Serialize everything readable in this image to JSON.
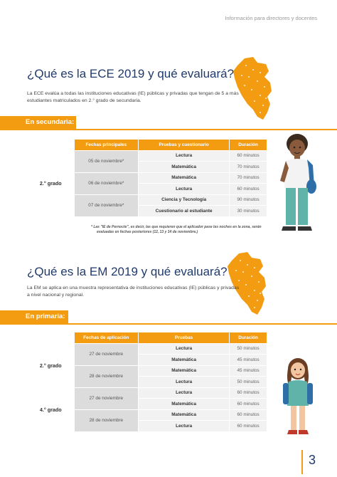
{
  "header": {
    "note": "Información para directores y docentes"
  },
  "ece": {
    "title": "¿Qué es la ECE 2019 y qué evaluará?",
    "intro": "La ECE evalúa a todas las instituciones educativas (IE) públicas y privadas que tengan de 5 a más estudiantes matriculados en 2.° grado de secundaria.",
    "tag": "En secundaria:",
    "headers": [
      "Fechas principales",
      "Pruebas y cuestionario",
      "Duración"
    ],
    "grade": "2.° grado",
    "dates": [
      "05 de noviembre*",
      "06 de noviembre*",
      "07 de noviembre*"
    ],
    "rows": [
      {
        "test": "Lectura",
        "duration": "60 minutos"
      },
      {
        "test": "Matemática",
        "duration": "70 minutos"
      },
      {
        "test": "Matemática",
        "duration": "70 minutos"
      },
      {
        "test": "Lectura",
        "duration": "60 minutos"
      },
      {
        "test": "Ciencia y Tecnología",
        "duration": "90 minutos"
      },
      {
        "test": "Cuestionario al estudiante",
        "duration": "30 minutos"
      }
    ],
    "footnote_line1": "* Las \"IE de Pernocte\", es decir, las que requieren que el aplicador pase las noches en la zona, serán",
    "footnote_line2": "evaluadas en fechas posteriores (12, 13 y 14 de noviembre.)"
  },
  "em": {
    "title": "¿Qué es la EM 2019 y qué evaluará?",
    "intro": "La EM se aplica en una muestra representativa de instituciones educativas (IE) públicas y privadas a nivel nacional y regional.",
    "tag": "En primaria:",
    "headers": [
      "Fechas de aplicación",
      "Pruebas",
      "Duración"
    ],
    "grades": [
      "2.° grado",
      "4.° grado"
    ],
    "dates": [
      "27 de noviembre",
      "28 de noviembre",
      "27 de noviembre",
      "28 de noviembre"
    ],
    "rows": [
      {
        "test": "Lectura",
        "duration": "50 minutos"
      },
      {
        "test": "Matemática",
        "duration": "45 minutos"
      },
      {
        "test": "Matemática",
        "duration": "45 minutos"
      },
      {
        "test": "Lectura",
        "duration": "50 minutos"
      },
      {
        "test": "Lectura",
        "duration": "60 minutos"
      },
      {
        "test": "Matemática",
        "duration": "60 minutos"
      },
      {
        "test": "Matemática",
        "duration": "60 minutos"
      },
      {
        "test": "Lectura",
        "duration": "60 minutos"
      }
    ]
  },
  "page_number": "3",
  "colors": {
    "accent": "#f39c12",
    "title": "#1f3a6d"
  },
  "icons": [
    "peru-map-icon",
    "student-boy-illustration",
    "student-girl-illustration"
  ]
}
